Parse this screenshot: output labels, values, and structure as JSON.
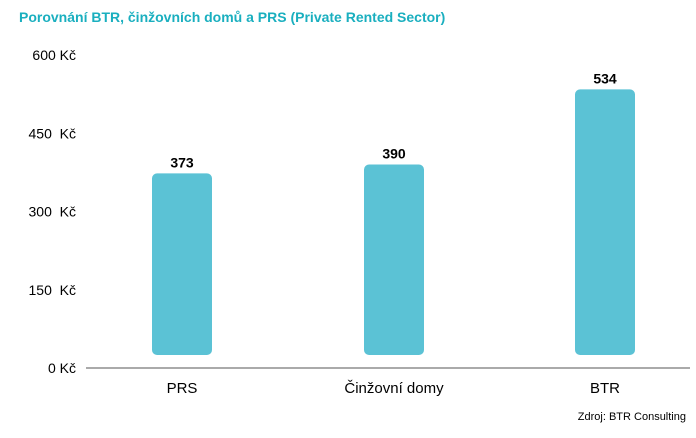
{
  "title": "Porovnání BTR, činžovních domů a PRS (Private Rented Sector)",
  "source": "Zdroj: BTR Consulting",
  "colors": {
    "bar": "#5BC2D5",
    "title": "#1AAFBF",
    "axis": "#555555"
  },
  "chart_data": {
    "type": "bar",
    "title": "Porovnání BTR, činžovních domů a PRS (Private Rented Sector)",
    "xlabel": "",
    "ylabel": "",
    "categories": [
      "PRS",
      "Činžovní domy",
      "BTR"
    ],
    "values": [
      373,
      390,
      534
    ],
    "data_labels": [
      "373",
      "390",
      "534"
    ],
    "ylim": [
      0,
      600
    ],
    "yticks": [
      0,
      150,
      300,
      450,
      600
    ],
    "ytick_labels": [
      "0 Kč",
      "150  Kč",
      "300  Kč",
      "450  Kč",
      "600 Kč"
    ],
    "grid": false,
    "legend": "none"
  }
}
